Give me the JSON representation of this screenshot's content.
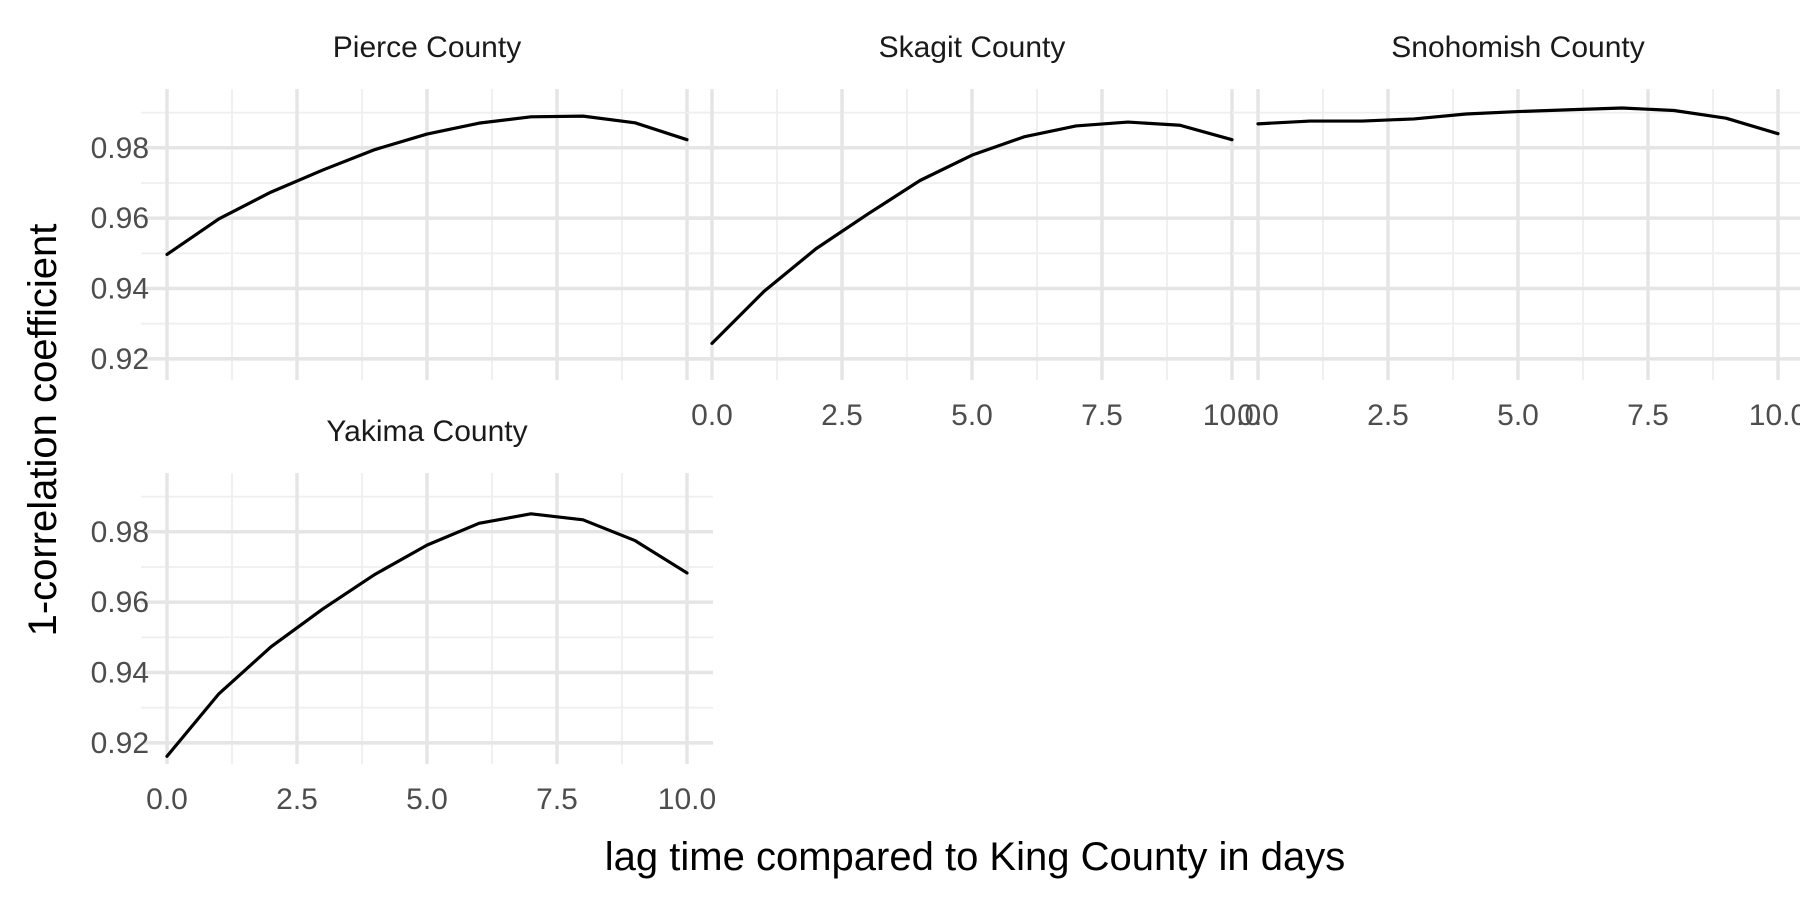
{
  "chart_data": {
    "type": "line",
    "xlabel": "lag time compared to King County in days",
    "ylabel": "1-correlation coefficient",
    "xlim": [
      0,
      10
    ],
    "ylim": [
      0.914,
      0.995
    ],
    "x_ticks": [
      "0.0",
      "2.5",
      "5.0",
      "7.5",
      "10.0"
    ],
    "y_ticks": [
      "0.92",
      "0.94",
      "0.96",
      "0.98"
    ],
    "grid": true,
    "x": [
      0,
      1,
      2,
      3,
      4,
      5,
      6,
      7,
      8,
      9,
      10
    ],
    "panels": [
      {
        "title": "Pierce County",
        "values": [
          0.9497,
          0.9598,
          0.9674,
          0.9737,
          0.9795,
          0.9839,
          0.987,
          0.9888,
          0.989,
          0.9871,
          0.9823
        ]
      },
      {
        "title": "Skagit County",
        "values": [
          0.9244,
          0.9392,
          0.9513,
          0.9612,
          0.9707,
          0.9779,
          0.9831,
          0.9862,
          0.9873,
          0.9864,
          0.9823
        ]
      },
      {
        "title": "Snohomish County",
        "values": [
          0.9868,
          0.9876,
          0.9876,
          0.9882,
          0.9896,
          0.9903,
          0.9908,
          0.9913,
          0.9906,
          0.9884,
          0.984
        ]
      },
      {
        "title": "Yakima County",
        "values": [
          0.9162,
          0.934,
          0.9473,
          0.9581,
          0.9679,
          0.9762,
          0.9824,
          0.9851,
          0.9834,
          0.9775,
          0.9683
        ]
      }
    ]
  }
}
